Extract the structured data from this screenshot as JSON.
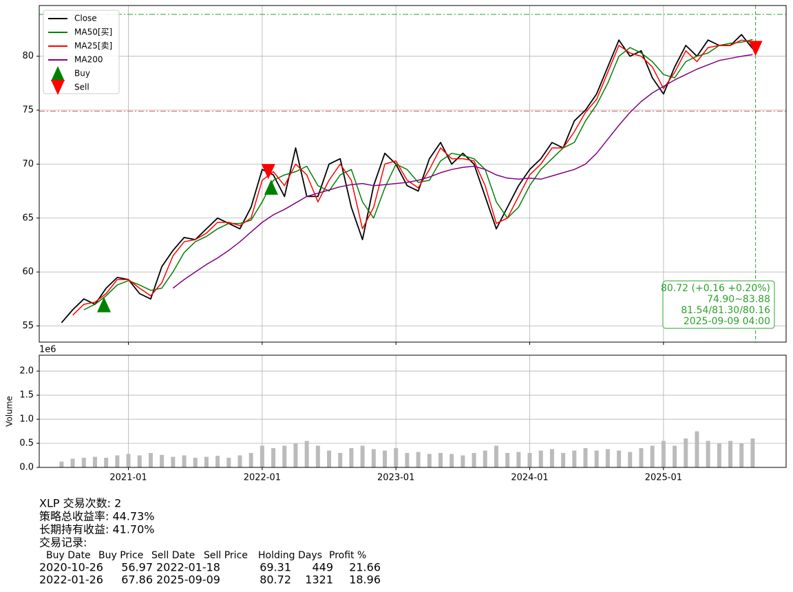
{
  "chart_data": [
    {
      "type": "line",
      "x": [
        "2020-07",
        "2020-08",
        "2020-09",
        "2020-10",
        "2020-11",
        "2020-12",
        "2021-01",
        "2021-02",
        "2021-03",
        "2021-04",
        "2021-05",
        "2021-06",
        "2021-07",
        "2021-08",
        "2021-09",
        "2021-10",
        "2021-11",
        "2021-12",
        "2022-01",
        "2022-02",
        "2022-03",
        "2022-04",
        "2022-05",
        "2022-06",
        "2022-07",
        "2022-08",
        "2022-09",
        "2022-10",
        "2022-11",
        "2022-12",
        "2023-01",
        "2023-02",
        "2023-03",
        "2023-04",
        "2023-05",
        "2023-06",
        "2023-07",
        "2023-08",
        "2023-09",
        "2023-10",
        "2023-11",
        "2023-12",
        "2024-01",
        "2024-02",
        "2024-03",
        "2024-04",
        "2024-05",
        "2024-06",
        "2024-07",
        "2024-08",
        "2024-09",
        "2024-10",
        "2024-11",
        "2024-12",
        "2025-01",
        "2025-02",
        "2025-03",
        "2025-04",
        "2025-05",
        "2025-06",
        "2025-07",
        "2025-08",
        "2025-09"
      ],
      "series": [
        {
          "name": "Close",
          "color": "#000000",
          "values": [
            55.3,
            56.5,
            57.5,
            57.0,
            58.5,
            59.5,
            59.3,
            58.0,
            57.5,
            60.5,
            62.0,
            63.2,
            63.0,
            64.0,
            65.0,
            64.5,
            64.0,
            66.0,
            69.5,
            69.0,
            67.0,
            71.5,
            67.0,
            67.0,
            70.0,
            70.5,
            66.0,
            63.0,
            68.0,
            71.0,
            70.0,
            68.0,
            67.5,
            70.5,
            72.0,
            70.0,
            71.0,
            70.0,
            67.0,
            64.0,
            66.0,
            68.0,
            69.5,
            70.5,
            72.0,
            71.5,
            74.0,
            75.0,
            76.5,
            79.0,
            81.5,
            80.0,
            80.5,
            78.0,
            76.5,
            79.0,
            81.0,
            80.0,
            81.5,
            81.0,
            81.0,
            82.0,
            80.7
          ]
        },
        {
          "name": "MA50[买]",
          "color": "#008000",
          "values": [
            null,
            null,
            56.5,
            57.0,
            57.8,
            58.8,
            59.2,
            58.8,
            58.3,
            58.5,
            60.0,
            61.8,
            62.8,
            63.3,
            64.0,
            64.5,
            64.5,
            64.8,
            66.5,
            68.5,
            69.0,
            69.3,
            69.8,
            68.0,
            67.5,
            69.0,
            69.5,
            66.5,
            65.0,
            67.8,
            70.0,
            69.5,
            68.3,
            68.5,
            70.3,
            71.0,
            70.8,
            70.5,
            69.5,
            66.5,
            65.0,
            66.0,
            68.0,
            69.5,
            70.5,
            71.5,
            72.0,
            74.0,
            75.5,
            77.5,
            80.0,
            80.8,
            80.3,
            79.5,
            78.3,
            78.0,
            79.5,
            80.0,
            80.3,
            81.0,
            81.2,
            81.3,
            81.54
          ]
        },
        {
          "name": "MA25[卖]",
          "color": "#ff0000",
          "values": [
            null,
            56.0,
            57.0,
            57.2,
            58.0,
            59.3,
            59.3,
            58.5,
            57.8,
            59.0,
            61.5,
            62.8,
            63.0,
            63.6,
            64.6,
            64.6,
            64.3,
            65.0,
            68.5,
            69.3,
            68.0,
            70.0,
            69.0,
            66.5,
            68.5,
            70.0,
            68.5,
            64.0,
            66.0,
            70.0,
            70.3,
            68.5,
            67.8,
            69.5,
            71.5,
            70.5,
            70.5,
            70.3,
            68.0,
            64.5,
            65.0,
            67.0,
            69.0,
            70.0,
            71.5,
            71.5,
            73.0,
            74.8,
            76.0,
            78.5,
            81.0,
            80.3,
            80.0,
            79.0,
            77.0,
            78.5,
            80.5,
            79.5,
            80.8,
            81.0,
            81.0,
            81.5,
            81.3
          ]
        },
        {
          "name": "MA200",
          "color": "#800080",
          "values": [
            null,
            null,
            null,
            null,
            null,
            null,
            null,
            null,
            null,
            null,
            58.5,
            59.3,
            60.0,
            60.7,
            61.3,
            62.0,
            62.8,
            63.7,
            64.6,
            65.3,
            65.8,
            66.4,
            67.0,
            67.3,
            67.6,
            67.9,
            68.1,
            68.2,
            68.0,
            68.1,
            68.2,
            68.3,
            68.5,
            68.8,
            69.2,
            69.5,
            69.7,
            69.8,
            69.5,
            69.0,
            68.7,
            68.6,
            68.7,
            68.6,
            68.9,
            69.2,
            69.5,
            70.0,
            71.0,
            72.3,
            73.6,
            74.8,
            75.8,
            76.6,
            77.2,
            77.8,
            78.3,
            78.8,
            79.2,
            79.6,
            79.8,
            80.0,
            80.16
          ]
        }
      ],
      "markers": [
        {
          "name": "Buy",
          "color": "#008000",
          "shape": "up",
          "x": [
            "2020-10-26",
            "2022-01-26"
          ],
          "values": [
            56.97,
            67.86
          ]
        },
        {
          "name": "Sell",
          "color": "#ff0000",
          "shape": "down",
          "x": [
            "2022-01-18",
            "2025-09-09"
          ],
          "values": [
            69.31,
            80.72
          ]
        }
      ],
      "hlines": [
        {
          "value": 83.88,
          "color": "#2ca02c"
        },
        {
          "value": 74.9,
          "color": "#e06060"
        }
      ],
      "vline": {
        "x": "2025-09-09",
        "color": "#2ca02c"
      },
      "annotation": [
        "80.72 (+0.16 +0.20%)",
        "74.90~83.88",
        "81.54/81.30/80.16",
        "2025-09-09 04:00"
      ],
      "xlim": [
        "2020-05",
        "2025-12"
      ],
      "ylim": [
        53.5,
        84.7
      ],
      "yticks": [
        55,
        60,
        65,
        70,
        75,
        80
      ],
      "grid": true,
      "legend": "upper left"
    },
    {
      "type": "bar",
      "x": [
        "2020-07",
        "2020-08",
        "2020-09",
        "2020-10",
        "2020-11",
        "2020-12",
        "2021-01",
        "2021-02",
        "2021-03",
        "2021-04",
        "2021-05",
        "2021-06",
        "2021-07",
        "2021-08",
        "2021-09",
        "2021-10",
        "2021-11",
        "2021-12",
        "2022-01",
        "2022-02",
        "2022-03",
        "2022-04",
        "2022-05",
        "2022-06",
        "2022-07",
        "2022-08",
        "2022-09",
        "2022-10",
        "2022-11",
        "2022-12",
        "2023-01",
        "2023-02",
        "2023-03",
        "2023-04",
        "2023-05",
        "2023-06",
        "2023-07",
        "2023-08",
        "2023-09",
        "2023-10",
        "2023-11",
        "2023-12",
        "2024-01",
        "2024-02",
        "2024-03",
        "2024-04",
        "2024-05",
        "2024-06",
        "2024-07",
        "2024-08",
        "2024-09",
        "2024-10",
        "2024-11",
        "2024-12",
        "2025-01",
        "2025-02",
        "2025-03",
        "2025-04",
        "2025-05",
        "2025-06",
        "2025-07",
        "2025-08",
        "2025-09"
      ],
      "values": [
        0.12,
        0.18,
        0.2,
        0.22,
        0.2,
        0.25,
        0.28,
        0.25,
        0.3,
        0.26,
        0.22,
        0.25,
        0.2,
        0.22,
        0.24,
        0.2,
        0.25,
        0.3,
        0.45,
        0.4,
        0.45,
        0.5,
        0.55,
        0.45,
        0.35,
        0.3,
        0.4,
        0.45,
        0.38,
        0.35,
        0.4,
        0.3,
        0.32,
        0.28,
        0.3,
        0.28,
        0.25,
        0.3,
        0.35,
        0.45,
        0.3,
        0.32,
        0.3,
        0.35,
        0.38,
        0.3,
        0.35,
        0.4,
        0.35,
        0.38,
        0.35,
        0.32,
        0.4,
        0.45,
        0.55,
        0.45,
        0.6,
        0.75,
        0.55,
        0.5,
        0.55,
        0.5,
        0.6
      ],
      "color": "#bbbbbb",
      "ylabel": "Volume",
      "offset_label": "1e6",
      "xlim": [
        "2020-05",
        "2025-12"
      ],
      "xticks": [
        "2021-01",
        "2022-01",
        "2023-01",
        "2024-01",
        "2025-01"
      ],
      "ylim": [
        0,
        2.33
      ],
      "yticks": [
        {
          "value": 0,
          "label": "0.0"
        },
        0.5,
        {
          "value": 1,
          "label": "1.0"
        },
        1.5,
        {
          "value": 2,
          "label": "2.0"
        }
      ],
      "grid": true
    }
  ],
  "summary": {
    "lines": [
      "XLP 交易次数: 2",
      "策略总收益率: 44.73%",
      "长期持有收益: 41.70%",
      "交易记录:"
    ],
    "table": {
      "columns": [
        "Buy Date",
        "Buy Price",
        "Sell Date",
        "Sell Price",
        "Holding Days",
        "Profit %"
      ],
      "rows": [
        [
          "2020-10-26",
          "56.97",
          "2022-01-18",
          "69.31",
          "449",
          "21.66"
        ],
        [
          "2022-01-26",
          "67.86",
          "2025-09-09",
          "80.72",
          "1321",
          "18.96"
        ]
      ]
    }
  }
}
